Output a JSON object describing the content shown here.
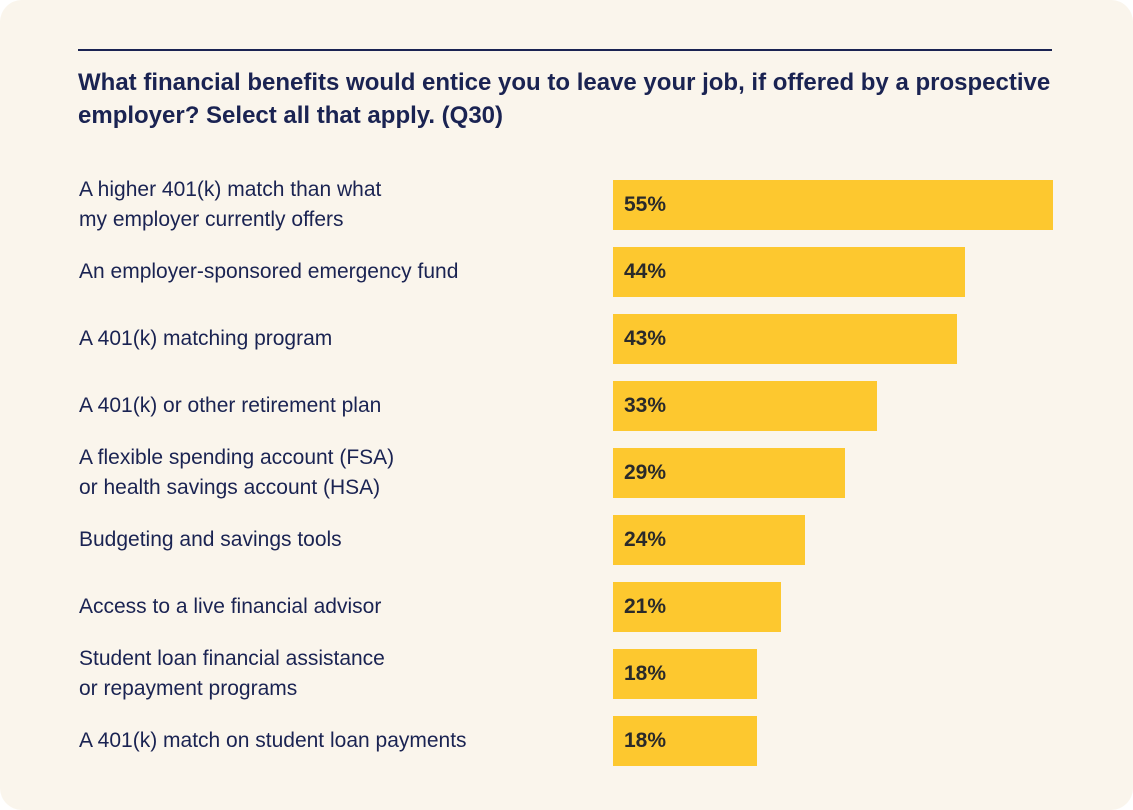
{
  "chart_data": {
    "type": "bar",
    "orientation": "horizontal",
    "title": "What financial benefits would entice you to leave your job, if offered by a prospective employer? Select all that apply. (Q30)",
    "categories": [
      "A higher 401(k) match than what\nmy employer currently offers",
      "An employer-sponsored emergency fund",
      "A 401(k) matching program",
      "A 401(k) or other retirement plan",
      "A flexible spending account (FSA)\nor health savings account (HSA)",
      "Budgeting and savings tools",
      "Access to a live financial advisor",
      "Student loan financial assistance\nor repayment programs",
      "A 401(k) match on student loan payments"
    ],
    "values": [
      55,
      44,
      43,
      33,
      29,
      24,
      21,
      18,
      18
    ],
    "value_labels": [
      "55%",
      "44%",
      "43%",
      "33%",
      "29%",
      "24%",
      "21%",
      "18%",
      "18%"
    ],
    "color": "#fdc82f"
  }
}
